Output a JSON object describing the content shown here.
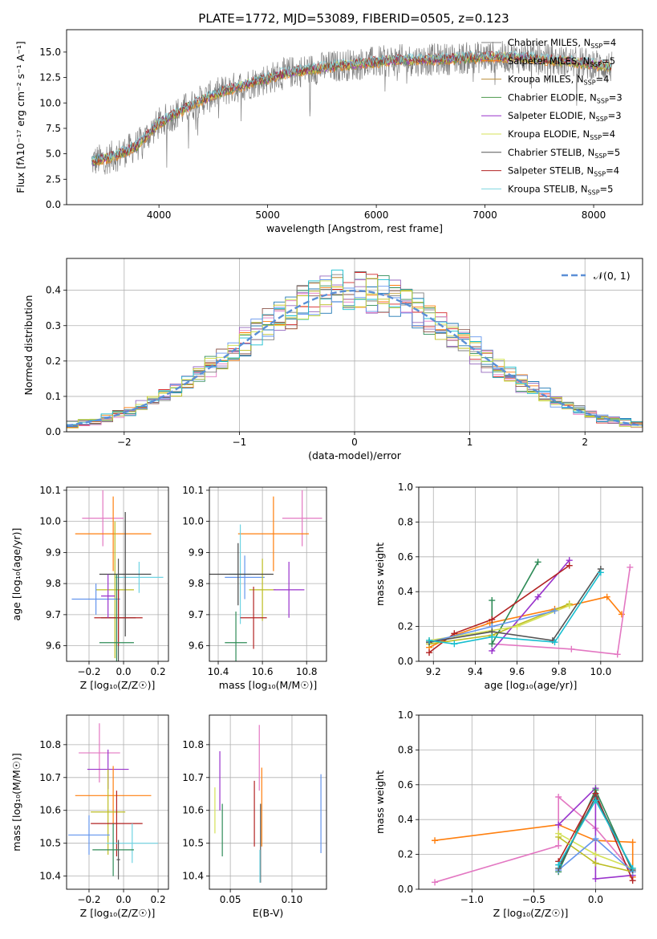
{
  "chart_data": [
    {
      "type": "line",
      "title": "PLATE=1772, MJD=53089, FIBERID=0505, z=0.123",
      "xlabel": "wavelength [Angstrom, rest frame]",
      "ylabel": "Flux [fλ10⁻¹⁷ erg cm⁻² s⁻¹ A⁻¹]",
      "xlim": [
        3150,
        8450
      ],
      "ylim": [
        0,
        17.2
      ],
      "xticks": [
        4000,
        5000,
        6000,
        7000,
        8000
      ],
      "yticks": [
        0.0,
        2.5,
        5.0,
        7.5,
        10.0,
        12.5,
        15.0
      ],
      "grid": false,
      "legend": "right",
      "data_x_range": [
        3380,
        8170
      ],
      "observed_color": "#808080",
      "model_anchor_wavelength": [
        3380,
        3600,
        3800,
        4000,
        4200,
        4400,
        4600,
        4800,
        5000,
        5200,
        5400,
        5600,
        5800,
        6000,
        6200,
        6400,
        6600,
        6800,
        7000,
        7200,
        7400,
        7600,
        7800,
        8000,
        8170
      ],
      "model_anchor_flux": [
        4.2,
        4.8,
        5.8,
        8.0,
        9.2,
        10.3,
        11.2,
        11.8,
        12.4,
        13.0,
        13.3,
        13.6,
        13.8,
        14.0,
        14.2,
        14.2,
        14.3,
        14.4,
        14.5,
        14.5,
        14.4,
        14.2,
        14.0,
        13.8,
        13.5
      ],
      "series": [
        {
          "name": "Chabrier MILES, N_SSP=4",
          "label_main": "Chabrier MILES, N",
          "label_sub": "SSP",
          "label_end": "=4",
          "color": "#7f7f7f"
        },
        {
          "name": "Salpeter MILES, N_SSP=5",
          "label_main": "Salpeter MILES, N",
          "label_sub": "SSP",
          "label_end": "=5",
          "color": "#ff7f0e"
        },
        {
          "name": "Kroupa MILES, N_SSP=4",
          "label_main": "Kroupa MILES, N",
          "label_sub": "SSP",
          "label_end": "=4",
          "color": "#bc8f3a"
        },
        {
          "name": "Chabrier ELODIE, N_SSP=3",
          "label_main": "Chabrier ELODIE, N",
          "label_sub": "SSP",
          "label_end": "=3",
          "color": "#4c9a4c"
        },
        {
          "name": "Salpeter ELODIE, N_SSP=3",
          "label_main": "Salpeter ELODIE, N",
          "label_sub": "SSP",
          "label_end": "=3",
          "color": "#9932cc"
        },
        {
          "name": "Kroupa ELODIE, N_SSP=4",
          "label_main": "Kroupa ELODIE, N",
          "label_sub": "SSP",
          "label_end": "=4",
          "color": "#d4e157"
        },
        {
          "name": "Chabrier STELIB, N_SSP=5",
          "label_main": "Chabrier STELIB, N",
          "label_sub": "SSP",
          "label_end": "=5",
          "color": "#555555"
        },
        {
          "name": "Salpeter STELIB, N_SSP=4",
          "label_main": "Salpeter STELIB, N",
          "label_sub": "SSP",
          "label_end": "=4",
          "color": "#b22222"
        },
        {
          "name": "Kroupa STELIB, N_SSP=5",
          "label_main": "Kroupa STELIB, N",
          "label_sub": "SSP",
          "label_end": "=5",
          "color": "#7fd6e0"
        }
      ]
    },
    {
      "type": "bar",
      "title": "",
      "xlabel": "(data-model)/error",
      "ylabel": "Normed distribution",
      "xlim": [
        -2.5,
        2.5
      ],
      "ylim": [
        0,
        0.49
      ],
      "xticks": [
        -2,
        -1,
        0,
        1,
        2
      ],
      "yticks": [
        0.0,
        0.1,
        0.2,
        0.3,
        0.4
      ],
      "grid": true,
      "legend": "top-right",
      "legend_label": "𝒩(0, 1)",
      "reference_curve": {
        "name": "N(0,1)",
        "color": "#5b8fd6",
        "style": "dashed"
      },
      "bin_width": 0.1,
      "bin_start": -2.5,
      "histogram_colors": [
        "#1f77b4",
        "#ff7f0e",
        "#2e8b57",
        "#d62728",
        "#9467bd",
        "#8c564b",
        "#e377c2",
        "#7f7f7f",
        "#bcbd22",
        "#17becf",
        "#6495ed",
        "#ccdd44"
      ]
    },
    {
      "type": "scatter",
      "panel": "Z vs age",
      "xlabel": "Z [log₁₀(Z/Z☉)]",
      "ylabel": "age  [log₁₀(age/yr)]",
      "xlim": [
        -0.33,
        0.26
      ],
      "ylim": [
        9.55,
        10.11
      ],
      "xticks": [
        -0.2,
        0.0,
        0.2
      ],
      "yticks": [
        9.6,
        9.7,
        9.8,
        9.9,
        10.0,
        10.1
      ],
      "grid": true,
      "points": [
        {
          "x": -0.12,
          "xerr": 0.12,
          "y": 10.01,
          "yerr": 0.09,
          "color": "#e377c2"
        },
        {
          "x": -0.06,
          "xerr": 0.22,
          "y": 9.96,
          "yerr": 0.12,
          "color": "#ff7f0e"
        },
        {
          "x": 0.09,
          "xerr": 0.14,
          "y": 9.82,
          "yerr": 0.05,
          "color": "#6fd3e3"
        },
        {
          "x": -0.05,
          "xerr": 0.11,
          "y": 9.78,
          "yerr": 0.22,
          "color": "#bcbd22"
        },
        {
          "x": -0.16,
          "xerr": 0.14,
          "y": 9.75,
          "yerr": 0.05,
          "color": "#6495ed"
        },
        {
          "x": 0.01,
          "xerr": 0.15,
          "y": 9.83,
          "yerr": 0.2,
          "color": "#444444"
        },
        {
          "x": -0.03,
          "xerr": 0.1,
          "y": 9.69,
          "yerr": 0.19,
          "color": "#555555"
        },
        {
          "x": -0.03,
          "xerr": 0.14,
          "y": 9.69,
          "yerr": 0.09,
          "color": "#b22222"
        },
        {
          "x": -0.04,
          "xerr": 0.1,
          "y": 9.61,
          "yerr": 0.22,
          "color": "#2e8b57"
        },
        {
          "x": -0.09,
          "xerr": 0.04,
          "y": 9.76,
          "yerr": 0.07,
          "color": "#9932cc"
        }
      ]
    },
    {
      "type": "scatter",
      "panel": "mass vs age",
      "xlabel": "mass [log₁₀(M/M☉)]",
      "ylabel": "",
      "xlim": [
        10.36,
        10.89
      ],
      "ylim": [
        9.55,
        10.11
      ],
      "xticks": [
        10.4,
        10.6,
        10.8
      ],
      "yticks": [
        9.6,
        9.7,
        9.8,
        9.9,
        10.0,
        10.1
      ],
      "grid": true,
      "points": [
        {
          "x": 10.78,
          "xerr": 0.09,
          "y": 10.01,
          "yerr": 0.09,
          "color": "#e377c2"
        },
        {
          "x": 10.65,
          "xerr": 0.16,
          "y": 9.96,
          "yerr": 0.12,
          "color": "#ff7f0e"
        },
        {
          "x": 10.5,
          "xerr": 0.05,
          "y": 9.83,
          "yerr": 0.16,
          "color": "#6fd3e3"
        },
        {
          "x": 10.52,
          "xerr": 0.09,
          "y": 9.82,
          "yerr": 0.07,
          "color": "#6495ed"
        },
        {
          "x": 10.6,
          "xerr": 0.06,
          "y": 9.78,
          "yerr": 0.1,
          "color": "#bcbd22"
        },
        {
          "x": 10.72,
          "xerr": 0.07,
          "y": 9.78,
          "yerr": 0.09,
          "color": "#9932cc"
        },
        {
          "x": 10.49,
          "xerr": 0.16,
          "y": 9.83,
          "yerr": 0.1,
          "color": "#444444"
        },
        {
          "x": 10.56,
          "xerr": 0.06,
          "y": 9.69,
          "yerr": 0.1,
          "color": "#b22222"
        },
        {
          "x": 10.48,
          "xerr": 0.05,
          "y": 9.61,
          "yerr": 0.1,
          "color": "#2e8b57"
        }
      ]
    },
    {
      "type": "line",
      "panel": "age vs mass weight",
      "xlabel": "age  [log₁₀(age/yr)]",
      "ylabel": "mass weight",
      "xlim": [
        9.13,
        10.2
      ],
      "ylim": [
        0,
        1.0
      ],
      "xticks": [
        9.2,
        9.4,
        9.6,
        9.8,
        10.0
      ],
      "yticks": [
        0.0,
        0.2,
        0.4,
        0.6,
        0.8,
        1.0
      ],
      "grid": true,
      "series": [
        {
          "color": "#ff7f0e",
          "x": [
            9.18,
            9.3,
            9.47,
            9.78,
            10.03,
            10.1
          ],
          "y": [
            0.08,
            0.15,
            0.22,
            0.3,
            0.37,
            0.27
          ]
        },
        {
          "color": "#e377c2",
          "x": [
            9.48,
            9.86,
            10.08,
            10.14
          ],
          "y": [
            0.1,
            0.07,
            0.04,
            0.54
          ]
        },
        {
          "color": "#9932cc",
          "x": [
            9.48,
            9.7,
            9.85
          ],
          "y": [
            0.06,
            0.37,
            0.58
          ]
        },
        {
          "color": "#2e8b57",
          "x": [
            9.48,
            9.48,
            9.7
          ],
          "y": [
            0.35,
            0.1,
            0.57
          ]
        },
        {
          "color": "#b22222",
          "x": [
            9.18,
            9.3,
            9.48,
            9.85
          ],
          "y": [
            0.05,
            0.16,
            0.24,
            0.55
          ]
        },
        {
          "color": "#bcbd22",
          "x": [
            9.18,
            9.48,
            9.85
          ],
          "y": [
            0.1,
            0.15,
            0.33
          ]
        },
        {
          "color": "#d4e157",
          "x": [
            9.18,
            9.6,
            9.85
          ],
          "y": [
            0.12,
            0.2,
            0.32
          ]
        },
        {
          "color": "#6495ed",
          "x": [
            9.18,
            9.48,
            9.78
          ],
          "y": [
            0.11,
            0.2,
            0.29
          ]
        },
        {
          "color": "#555555",
          "x": [
            9.18,
            9.48,
            9.77,
            10.0
          ],
          "y": [
            0.11,
            0.17,
            0.12,
            0.53
          ]
        },
        {
          "color": "#17becf",
          "x": [
            9.18,
            9.3,
            9.48,
            9.78,
            10.0
          ],
          "y": [
            0.12,
            0.1,
            0.14,
            0.11,
            0.51
          ]
        }
      ]
    },
    {
      "type": "scatter",
      "panel": "Z vs mass",
      "xlabel": "Z [log₁₀(Z/Z☉)]",
      "ylabel": "mass [log₁₀(M/M☉)]",
      "xlim": [
        -0.33,
        0.26
      ],
      "ylim": [
        10.36,
        10.89
      ],
      "xticks": [
        -0.2,
        0.0,
        0.2
      ],
      "yticks": [
        10.4,
        10.5,
        10.6,
        10.7,
        10.8
      ],
      "grid": true,
      "points": [
        {
          "x": -0.14,
          "xerr": 0.12,
          "y": 10.775,
          "yerr": 0.09,
          "color": "#e377c2"
        },
        {
          "x": -0.09,
          "xerr": 0.12,
          "y": 10.725,
          "yerr": 0.06,
          "color": "#9932cc"
        },
        {
          "x": -0.06,
          "xerr": 0.22,
          "y": 10.645,
          "yerr": 0.09,
          "color": "#ff7f0e"
        },
        {
          "x": -0.09,
          "xerr": 0.1,
          "y": 10.595,
          "yerr": 0.13,
          "color": "#bcbd22"
        },
        {
          "x": -0.04,
          "xerr": 0.15,
          "y": 10.56,
          "yerr": 0.1,
          "color": "#b22222"
        },
        {
          "x": -0.2,
          "xerr": 0.12,
          "y": 10.525,
          "yerr": 0.06,
          "color": "#6495ed"
        },
        {
          "x": 0.05,
          "xerr": 0.15,
          "y": 10.5,
          "yerr": 0.06,
          "color": "#6fd3e3"
        },
        {
          "x": -0.06,
          "xerr": 0.12,
          "y": 10.48,
          "yerr": 0.08,
          "color": "#2e8b57"
        },
        {
          "x": -0.03,
          "xerr": 0.01,
          "y": 10.45,
          "yerr": 0.06,
          "color": "#555555"
        }
      ]
    },
    {
      "type": "scatter",
      "panel": "E(B-V) vs mass",
      "xlabel": "E(B-V)",
      "ylabel": "",
      "xlim": [
        0.033,
        0.128
      ],
      "ylim": [
        10.36,
        10.89
      ],
      "xticks": [
        0.05,
        0.1
      ],
      "yticks": [
        10.4,
        10.5,
        10.6,
        10.7,
        10.8
      ],
      "grid": true,
      "points": [
        {
          "x": 0.0375,
          "y": 10.6,
          "yerr": 0.07,
          "color": "#d4e157"
        },
        {
          "x": 0.0415,
          "y": 10.69,
          "yerr": 0.09,
          "color": "#9932cc"
        },
        {
          "x": 0.0435,
          "y": 10.54,
          "yerr": 0.08,
          "color": "#2e8b57"
        },
        {
          "x": 0.0695,
          "y": 10.59,
          "yerr": 0.1,
          "color": "#b22222"
        },
        {
          "x": 0.0735,
          "y": 10.76,
          "yerr": 0.1,
          "color": "#e377c2"
        },
        {
          "x": 0.0745,
          "y": 10.5,
          "yerr": 0.12,
          "color": "#555555"
        },
        {
          "x": 0.0755,
          "y": 10.61,
          "yerr": 0.12,
          "color": "#ff7f0e"
        },
        {
          "x": 0.074,
          "y": 10.43,
          "yerr": 0.05,
          "color": "#6fd3e3"
        },
        {
          "x": 0.1235,
          "y": 10.59,
          "yerr": 0.12,
          "color": "#6495ed"
        }
      ]
    },
    {
      "type": "line",
      "panel": "Z vs mass weight",
      "xlabel": "Z [log₁₀(Z/Z☉)]",
      "ylabel": "mass weight",
      "xlim": [
        -1.43,
        0.38
      ],
      "ylim": [
        0,
        1.0
      ],
      "xticks": [
        -1.0,
        -0.5,
        0.0
      ],
      "yticks": [
        0.0,
        0.2,
        0.4,
        0.6,
        0.8,
        1.0
      ],
      "grid": true,
      "series": [
        {
          "color": "#ff7f0e",
          "x": [
            -1.3,
            -0.3,
            0.0,
            0.3,
            0.3
          ],
          "y": [
            0.28,
            0.37,
            0.28,
            0.27,
            0.07
          ]
        },
        {
          "color": "#e377c2",
          "x": [
            -1.3,
            -0.3,
            -0.3,
            0.0,
            0.3
          ],
          "y": [
            0.04,
            0.25,
            0.53,
            0.35,
            0.1
          ]
        },
        {
          "color": "#9932cc",
          "x": [
            -0.3,
            0.0,
            0.0,
            0.3
          ],
          "y": [
            0.37,
            0.58,
            0.06,
            0.08
          ]
        },
        {
          "color": "#2e8b57",
          "x": [
            -0.3,
            0.0,
            0.3
          ],
          "y": [
            0.1,
            0.57,
            0.1
          ]
        },
        {
          "color": "#b22222",
          "x": [
            -0.3,
            0.0,
            0.3
          ],
          "y": [
            0.16,
            0.55,
            0.05
          ]
        },
        {
          "color": "#bcbd22",
          "x": [
            -0.3,
            0.0,
            0.3
          ],
          "y": [
            0.3,
            0.15,
            0.1
          ]
        },
        {
          "color": "#d4e157",
          "x": [
            -0.3,
            0.0,
            0.3
          ],
          "y": [
            0.32,
            0.2,
            0.12
          ]
        },
        {
          "color": "#6495ed",
          "x": [
            -0.3,
            0.0,
            0.3
          ],
          "y": [
            0.11,
            0.29,
            0.1
          ]
        },
        {
          "color": "#555555",
          "x": [
            -0.3,
            0.0,
            0.3
          ],
          "y": [
            0.12,
            0.53,
            0.11
          ]
        },
        {
          "color": "#17becf",
          "x": [
            -0.3,
            0.0,
            0.3
          ],
          "y": [
            0.14,
            0.51,
            0.12
          ]
        }
      ]
    }
  ]
}
